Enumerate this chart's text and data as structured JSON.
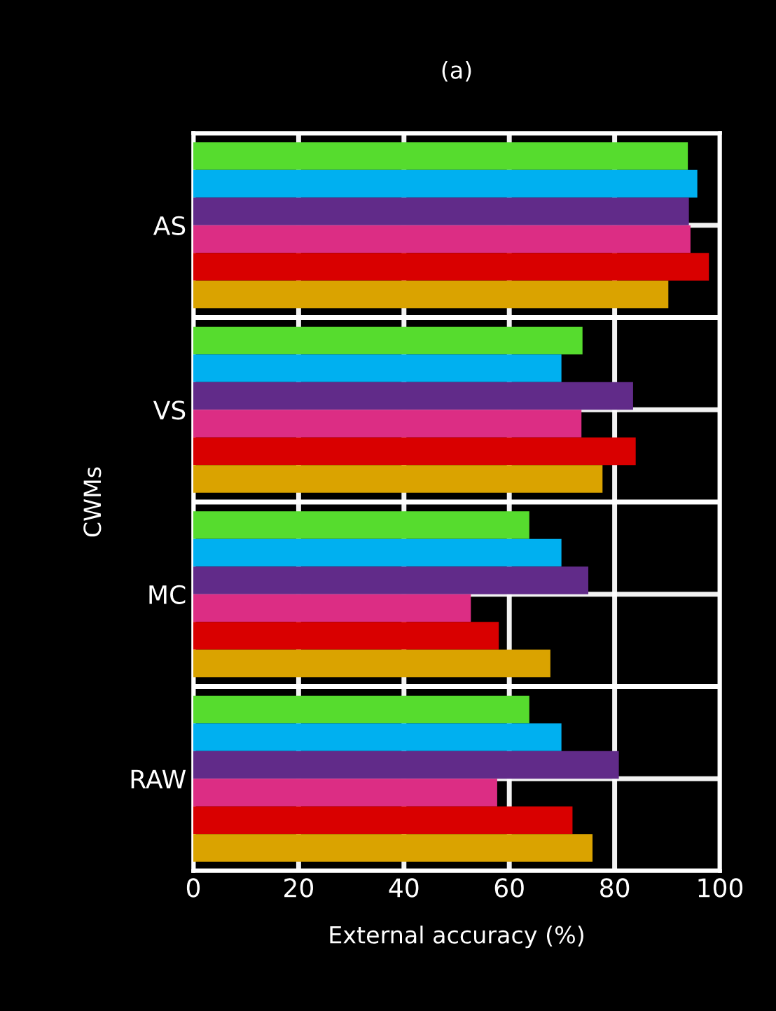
{
  "chart_data": {
    "type": "bar",
    "orientation": "horizontal",
    "title": "(a)",
    "xlabel": "External accuracy (%)",
    "ylabel": "CWMs",
    "categories": [
      "AS",
      "VS",
      "MC",
      "RAW"
    ],
    "series": [
      {
        "color": "#56dc2e",
        "values": [
          93.9,
          73.9,
          63.8,
          63.8
        ]
      },
      {
        "color": "#00b0f0",
        "values": [
          95.7,
          69.9,
          69.9,
          69.9
        ]
      },
      {
        "color": "#612b89",
        "values": [
          94.1,
          83.5,
          75,
          80.8
        ]
      },
      {
        "color": "#dc2d84",
        "values": [
          94.4,
          73.7,
          52.7,
          57.7
        ]
      },
      {
        "color": "#d90000",
        "values": [
          97.9,
          84.0,
          58,
          72
        ]
      },
      {
        "color": "#daa300",
        "values": [
          90.2,
          77.7,
          67.8,
          75.8
        ]
      }
    ],
    "xlim": [
      0,
      100
    ],
    "xticks": [
      0,
      20,
      40,
      60,
      80,
      100
    ],
    "grid": true,
    "legend": false
  }
}
